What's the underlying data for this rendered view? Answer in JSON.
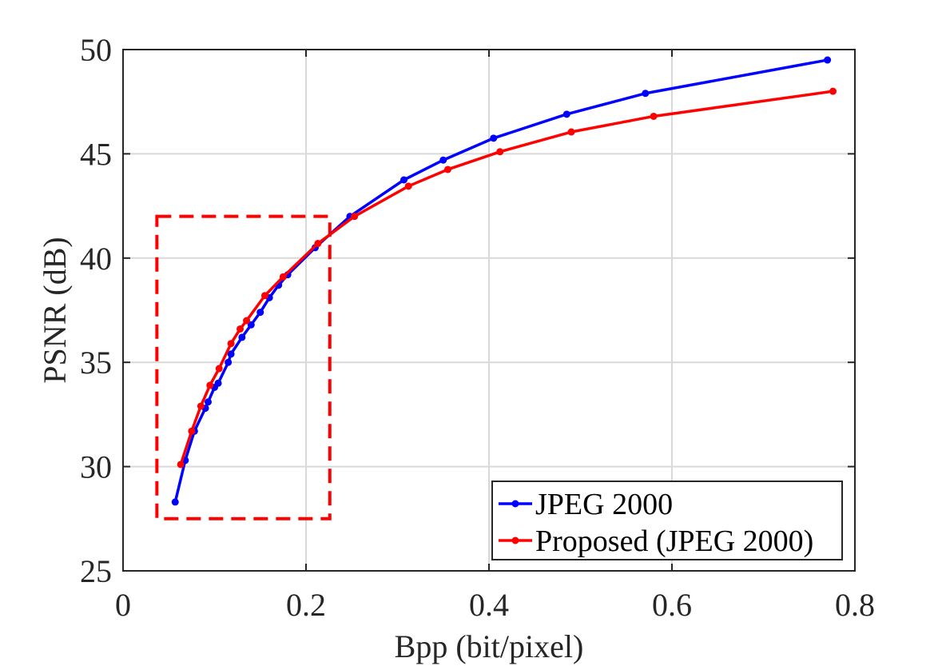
{
  "chart_data": {
    "type": "line",
    "xlabel": "Bpp (bit/pixel)",
    "ylabel": "PSNR (dB)",
    "xlim": [
      0,
      0.8
    ],
    "ylim": [
      25,
      50
    ],
    "xticks": [
      0,
      0.2,
      0.4,
      0.6,
      0.8
    ],
    "xtick_labels": [
      "0",
      "0.2",
      "0.4",
      "0.6",
      "0.8"
    ],
    "yticks": [
      25,
      30,
      35,
      40,
      45,
      50
    ],
    "ytick_labels": [
      "25",
      "30",
      "35",
      "40",
      "45",
      "50"
    ],
    "grid": true,
    "legend_position": "bottom-right",
    "series": [
      {
        "name": "JPEG 2000",
        "color": "#0000ff",
        "x": [
          0.057,
          0.068,
          0.078,
          0.09,
          0.093,
          0.1,
          0.104,
          0.115,
          0.118,
          0.13,
          0.14,
          0.15,
          0.16,
          0.17,
          0.18,
          0.21,
          0.248,
          0.307,
          0.35,
          0.405,
          0.485,
          0.571,
          0.77
        ],
        "y": [
          28.3,
          30.3,
          31.7,
          32.8,
          33.1,
          33.8,
          34.0,
          35.0,
          35.4,
          36.2,
          36.8,
          37.4,
          38.1,
          38.7,
          39.2,
          40.5,
          42.0,
          43.75,
          44.7,
          45.75,
          46.9,
          47.9,
          49.5
        ]
      },
      {
        "name": "Proposed (JPEG 2000)",
        "color": "#ff0000",
        "x": [
          0.063,
          0.075,
          0.085,
          0.095,
          0.105,
          0.118,
          0.128,
          0.135,
          0.155,
          0.175,
          0.213,
          0.253,
          0.312,
          0.355,
          0.412,
          0.49,
          0.58,
          0.776
        ],
        "y": [
          30.1,
          31.7,
          32.9,
          33.9,
          34.7,
          35.9,
          36.6,
          37.0,
          38.2,
          39.1,
          40.7,
          42.0,
          43.45,
          44.25,
          45.1,
          46.05,
          46.8,
          48.0
        ]
      }
    ],
    "annotations": [
      {
        "type": "dashed-rectangle",
        "color": "#ff0000",
        "x_range": [
          0.037,
          0.226
        ],
        "y_range": [
          27.5,
          42.0
        ]
      }
    ]
  }
}
